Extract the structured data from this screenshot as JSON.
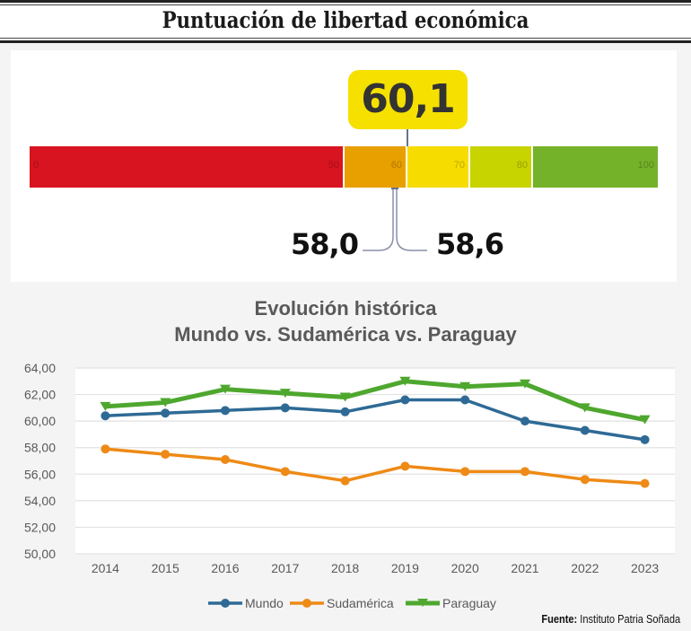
{
  "header": {
    "title": "Puntuación de libertad económica"
  },
  "gauge": {
    "score": "60,1",
    "score_value": 60.1,
    "segments": [
      {
        "from": 0,
        "to": 50,
        "label_start": "0",
        "label_end": "50",
        "color": "#d7141f"
      },
      {
        "from": 50,
        "to": 60,
        "label_end": "60",
        "color": "#e8a000"
      },
      {
        "from": 60,
        "to": 70,
        "label_end": "70",
        "color": "#f7dc00"
      },
      {
        "from": 70,
        "to": 80,
        "label_end": "80",
        "color": "#c8d400"
      },
      {
        "from": 80,
        "to": 100,
        "label_end": "100",
        "color": "#74b229"
      }
    ],
    "left_value": "58,0",
    "right_value": "58,6"
  },
  "chart_title": {
    "line1": "Evolución histórica",
    "line2": "Mundo vs. Sudamérica vs. Paraguay"
  },
  "source": {
    "label": "Fuente:",
    "text": "Instituto Patria Soñada"
  },
  "chart_data": {
    "type": "line",
    "title": "Evolución histórica — Mundo vs. Sudamérica vs. Paraguay",
    "xlabel": "",
    "ylabel": "",
    "x": [
      "2014",
      "2015",
      "2016",
      "2017",
      "2018",
      "2019",
      "2020",
      "2021",
      "2022",
      "2023"
    ],
    "ylim": [
      50,
      64
    ],
    "yticks": [
      "50,00",
      "52,00",
      "54,00",
      "56,00",
      "58,00",
      "60,00",
      "62,00",
      "64,00"
    ],
    "ytick_values": [
      50,
      52,
      54,
      56,
      58,
      60,
      62,
      64
    ],
    "grid": true,
    "legend": "bottom",
    "series": [
      {
        "name": "Mundo",
        "color": "#2e6a95",
        "marker": "circle",
        "values": [
          60.4,
          60.6,
          60.8,
          61.0,
          60.7,
          61.6,
          61.6,
          60.0,
          59.3,
          58.6
        ]
      },
      {
        "name": "Sudamérica",
        "color": "#ee8a16",
        "marker": "circle",
        "values": [
          57.9,
          57.5,
          57.1,
          56.2,
          55.5,
          56.6,
          56.2,
          56.2,
          55.6,
          55.3
        ]
      },
      {
        "name": "Paraguay",
        "color": "#4ea72e",
        "marker": "triangle-down",
        "values": [
          61.1,
          61.4,
          62.4,
          62.1,
          61.8,
          63.0,
          62.6,
          62.8,
          61.0,
          60.1
        ]
      }
    ]
  }
}
